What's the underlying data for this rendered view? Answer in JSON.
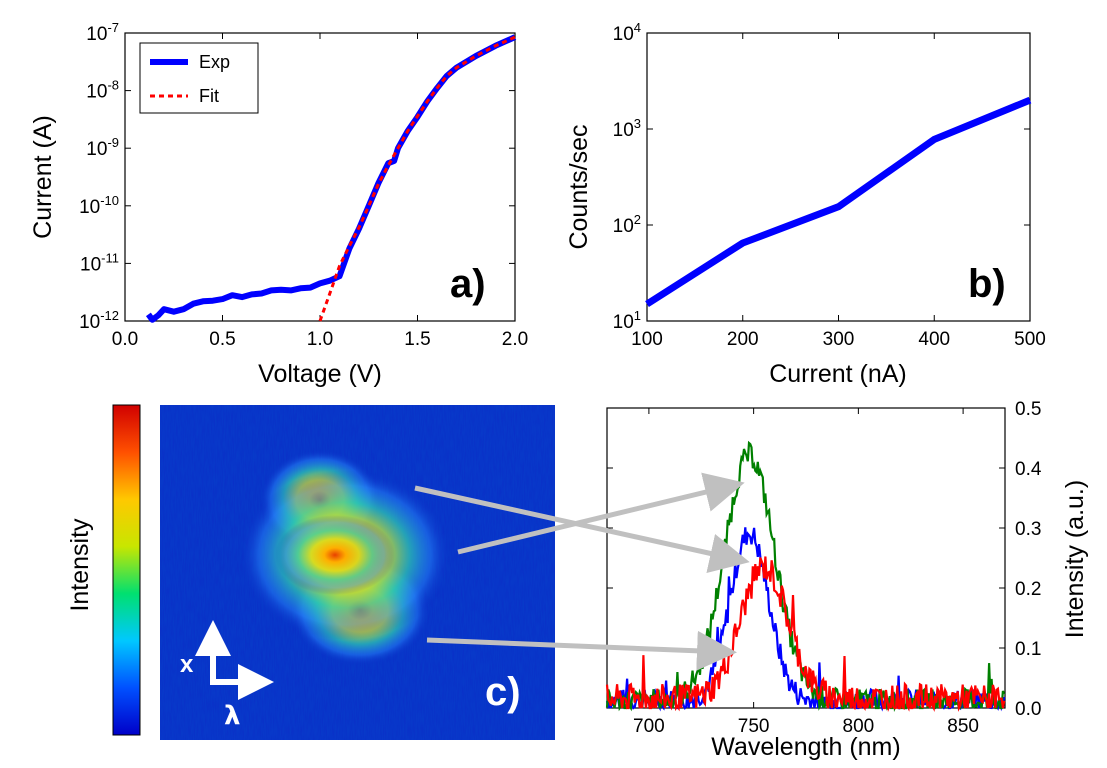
{
  "chart_data": [
    {
      "type": "line",
      "panel_label": "a)",
      "xlabel": "Voltage (V)",
      "ylabel": "Current (A)",
      "xlim": [
        0.0,
        2.0
      ],
      "ylim": [
        1e-12,
        1e-07
      ],
      "yscale": "log",
      "x_ticks": [
        "0.0",
        "0.5",
        "1.0",
        "1.5",
        "2.0"
      ],
      "y_ticks": [
        {
          "base": "10",
          "exp": "-12"
        },
        {
          "base": "10",
          "exp": "-11"
        },
        {
          "base": "10",
          "exp": "-10"
        },
        {
          "base": "10",
          "exp": "-9"
        },
        {
          "base": "10",
          "exp": "-8"
        },
        {
          "base": "10",
          "exp": "-7"
        }
      ],
      "legend_position": "top-left",
      "series": [
        {
          "name": "Exp",
          "color": "#0000ff",
          "style": "solid",
          "points": [
            [
              0.12,
              1.3e-12
            ],
            [
              0.14,
              1.05e-12
            ],
            [
              0.17,
              1.25e-12
            ],
            [
              0.2,
              1.6e-12
            ],
            [
              0.25,
              1.45e-12
            ],
            [
              0.3,
              1.6e-12
            ],
            [
              0.35,
              2e-12
            ],
            [
              0.4,
              2.2e-12
            ],
            [
              0.45,
              2.25e-12
            ],
            [
              0.5,
              2.4e-12
            ],
            [
              0.55,
              2.8e-12
            ],
            [
              0.6,
              2.6e-12
            ],
            [
              0.65,
              2.9e-12
            ],
            [
              0.7,
              3e-12
            ],
            [
              0.75,
              3.4e-12
            ],
            [
              0.8,
              3.5e-12
            ],
            [
              0.85,
              3.4e-12
            ],
            [
              0.9,
              3.7e-12
            ],
            [
              0.95,
              3.8e-12
            ],
            [
              1.0,
              4.5e-12
            ],
            [
              1.05,
              5e-12
            ],
            [
              1.1,
              6e-12
            ],
            [
              1.15,
              1.8e-11
            ],
            [
              1.2,
              4e-11
            ],
            [
              1.25,
              1e-10
            ],
            [
              1.3,
              2.5e-10
            ],
            [
              1.35,
              5.5e-10
            ],
            [
              1.38,
              6e-10
            ],
            [
              1.4,
              1e-09
            ],
            [
              1.45,
              2e-09
            ],
            [
              1.5,
              3.5e-09
            ],
            [
              1.55,
              6.5e-09
            ],
            [
              1.6,
              1.1e-08
            ],
            [
              1.65,
              1.8e-08
            ],
            [
              1.7,
              2.5e-08
            ],
            [
              1.8,
              4e-08
            ],
            [
              1.9,
              6e-08
            ],
            [
              2.0,
              8.5e-08
            ]
          ]
        },
        {
          "name": "Fit",
          "color": "#ff0000",
          "style": "dashed",
          "points": [
            [
              1.0,
              1e-12
            ],
            [
              1.05,
              3e-12
            ],
            [
              1.1,
              9e-12
            ],
            [
              1.15,
              2e-11
            ],
            [
              1.2,
              4.2e-11
            ],
            [
              1.25,
              1e-10
            ],
            [
              1.3,
              2.4e-10
            ],
            [
              1.35,
              5e-10
            ],
            [
              1.4,
              1e-09
            ],
            [
              1.45,
              2e-09
            ],
            [
              1.5,
              3.6e-09
            ],
            [
              1.55,
              6.5e-09
            ],
            [
              1.6,
              1.1e-08
            ],
            [
              1.65,
              1.8e-08
            ],
            [
              1.7,
              2.5e-08
            ],
            [
              1.8,
              4e-08
            ],
            [
              1.9,
              6e-08
            ],
            [
              2.0,
              8.5e-08
            ]
          ]
        }
      ]
    },
    {
      "type": "line",
      "panel_label": "b)",
      "xlabel": "Current (nA)",
      "ylabel": "Counts/sec",
      "xlim": [
        100,
        500
      ],
      "ylim": [
        10,
        10000
      ],
      "yscale": "log",
      "x_ticks": [
        "100",
        "200",
        "300",
        "400",
        "500"
      ],
      "y_ticks": [
        {
          "base": "10",
          "exp": "1"
        },
        {
          "base": "10",
          "exp": "2"
        },
        {
          "base": "10",
          "exp": "3"
        },
        {
          "base": "10",
          "exp": "4"
        }
      ],
      "series": [
        {
          "color": "#0000ff",
          "points": [
            [
              100,
              15
            ],
            [
              200,
              65
            ],
            [
              300,
              155
            ],
            [
              400,
              780
            ],
            [
              500,
              2000
            ]
          ]
        }
      ]
    },
    {
      "type": "heatmap",
      "panel_label": "c)",
      "colorbar_label": "Intensity",
      "x_axis_symbol": "λ",
      "y_axis_symbol": "x",
      "colormap": [
        "#0000c8",
        "#0050ff",
        "#00c8ff",
        "#00e070",
        "#c8e600",
        "#ffc800",
        "#ff5000",
        "#d00000"
      ]
    },
    {
      "type": "line",
      "xlabel": "Wavelength (nm)",
      "ylabel": "Intensity (a.u.)",
      "xlim": [
        680,
        870
      ],
      "ylim": [
        0.0,
        0.5
      ],
      "y_axis_side": "right",
      "x_ticks": [
        "700",
        "750",
        "800",
        "850"
      ],
      "y_ticks": [
        "0.0",
        "0.1",
        "0.2",
        "0.3",
        "0.4",
        "0.5"
      ],
      "series": [
        {
          "color": "#0000ff",
          "center": 748,
          "width": 13,
          "peak": 0.28,
          "noise": 0.02
        },
        {
          "color": "#008000",
          "center": 748,
          "width": 17,
          "peak": 0.41,
          "noise": 0.02
        },
        {
          "color": "#ff0000",
          "center": 755,
          "width": 16,
          "peak": 0.22,
          "noise": 0.025
        }
      ],
      "arrow_color": "#c0c0c0"
    }
  ]
}
